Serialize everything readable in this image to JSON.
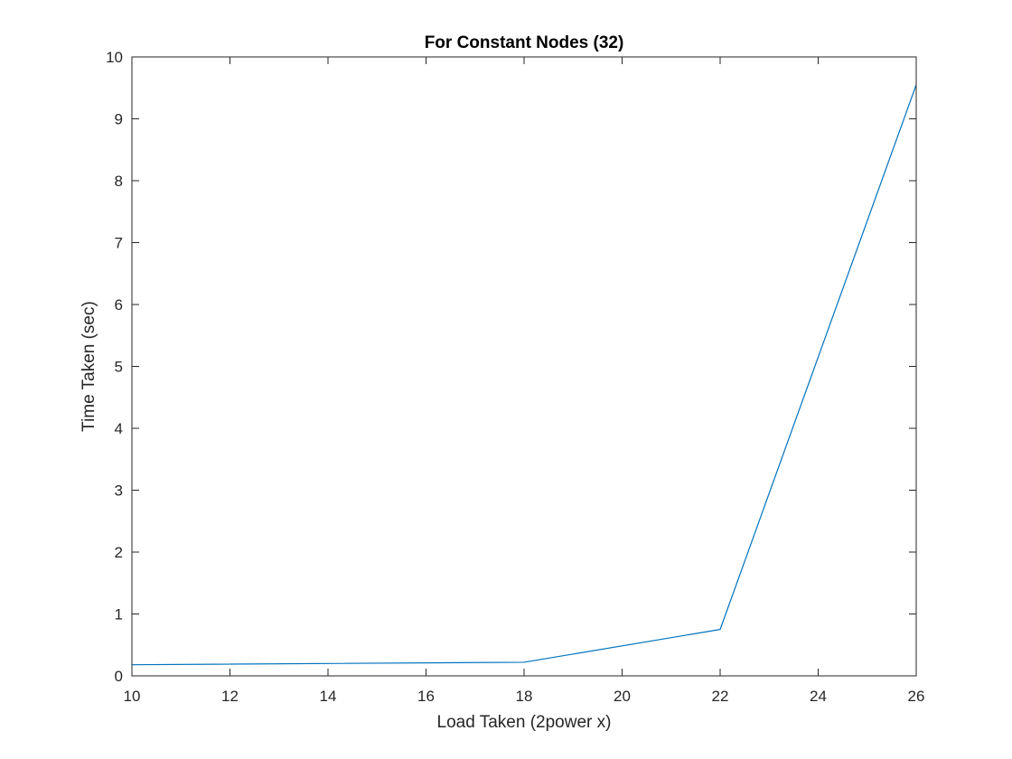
{
  "chart_data": {
    "type": "line",
    "title": "For Constant Nodes (32)",
    "xlabel": "Load Taken (2power x)",
    "ylabel": "Time Taken (sec)",
    "xlim": [
      10,
      26
    ],
    "ylim": [
      0,
      10
    ],
    "xticks": [
      10,
      12,
      14,
      16,
      18,
      20,
      22,
      24,
      26
    ],
    "yticks": [
      0,
      1,
      2,
      3,
      4,
      5,
      6,
      7,
      8,
      9,
      10
    ],
    "grid": false,
    "legend": "none",
    "series": [
      {
        "color": "#0072BD",
        "x": [
          10,
          18,
          22,
          26
        ],
        "y": [
          0.18,
          0.22,
          0.75,
          9.55
        ]
      }
    ]
  }
}
